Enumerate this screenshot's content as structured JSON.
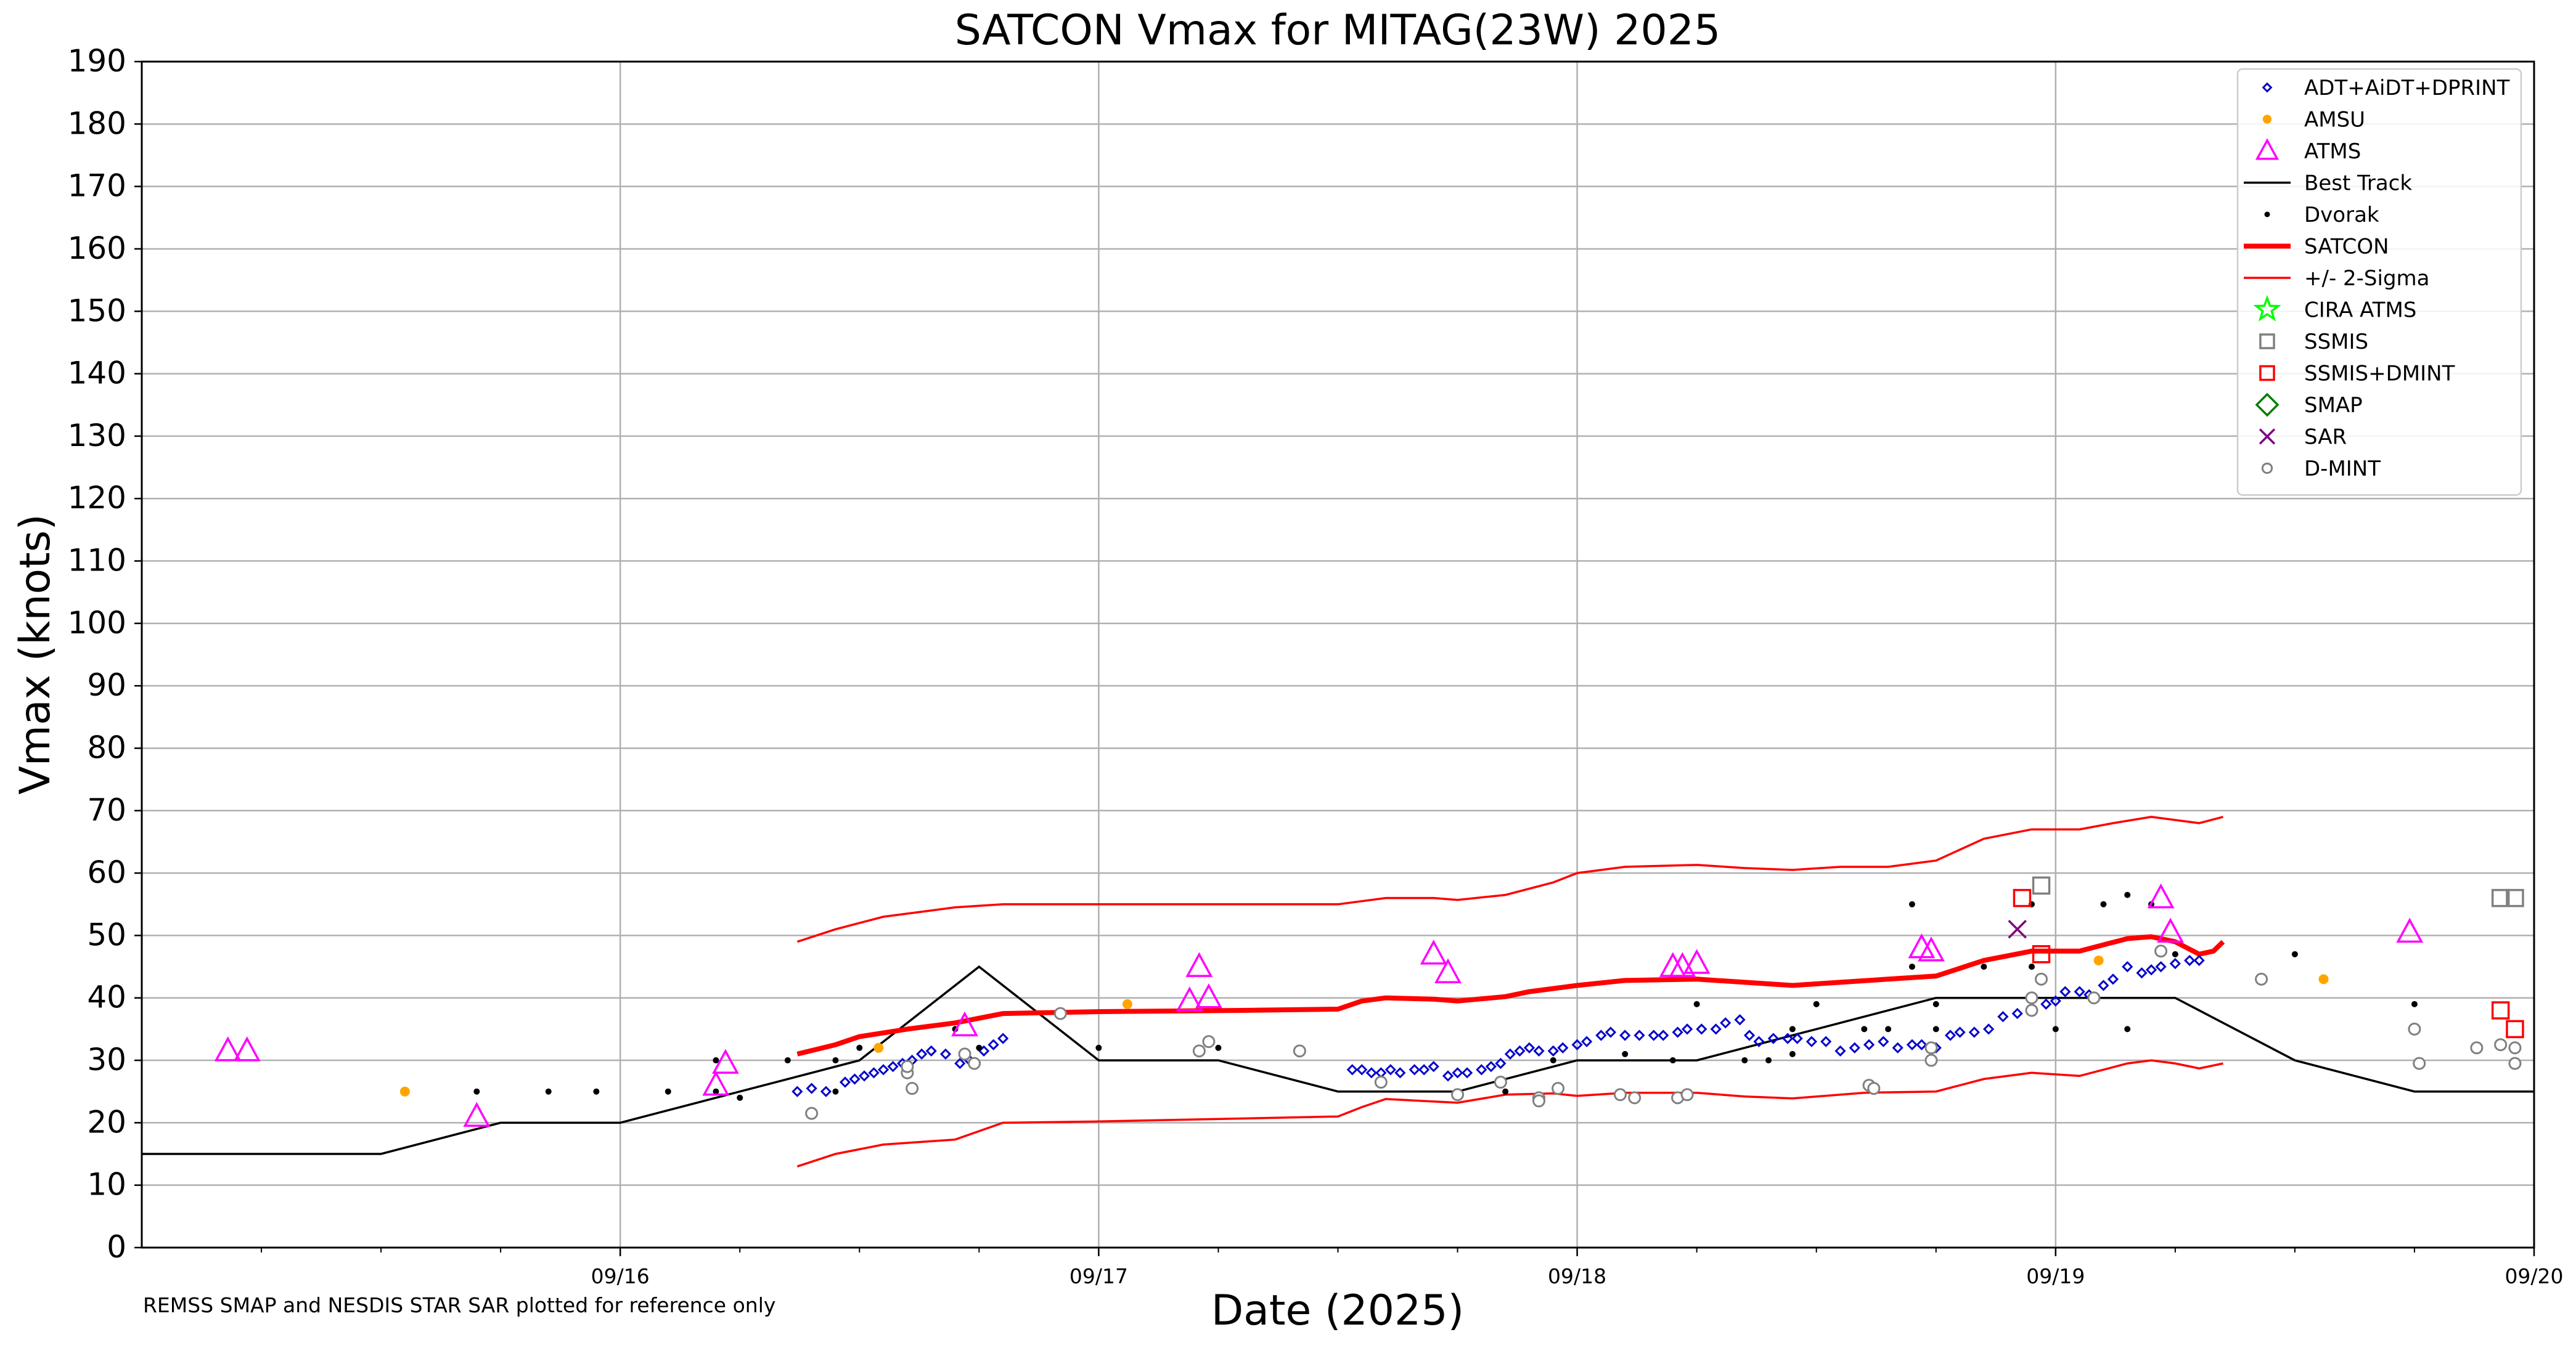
{
  "chart_data": {
    "type": "scatter",
    "title": "SATCON Vmax for MITAG(23W) 2025",
    "xlabel": "Date (2025)",
    "ylabel": "Vmax (knots)",
    "footnote": "REMSS SMAP and NESDIS STAR SAR plotted for reference only",
    "x_unit": "days (Sep 2025, fractional)",
    "xlim": [
      15.0,
      20.0
    ],
    "ylim": [
      0,
      190
    ],
    "y_ticks": [
      0,
      10,
      20,
      30,
      40,
      50,
      60,
      70,
      80,
      90,
      100,
      110,
      120,
      130,
      140,
      150,
      160,
      170,
      180,
      190
    ],
    "x_ticks": [
      {
        "value": 16,
        "label": "09/16"
      },
      {
        "value": 17,
        "label": "09/17"
      },
      {
        "value": 18,
        "label": "09/18"
      },
      {
        "value": 19,
        "label": "09/19"
      },
      {
        "value": 20,
        "label": "09/20"
      }
    ],
    "grid": true,
    "legend_position": "upper right",
    "colors": {
      "adt": "#0000cc",
      "amsu": "#ffa500",
      "atms": "#ff00ff",
      "best_track": "#000000",
      "dvorak": "#000000",
      "satcon": "#ff0000",
      "sigma": "#ff0000",
      "cira": "#00ff00",
      "ssmis": "#808080",
      "ssmis_dmint": "#ff0000",
      "smap": "#008000",
      "sar": "#800080",
      "dmint": "#808080"
    },
    "legend": [
      {
        "key": "adt",
        "label": "ADT+AiDT+DPRINT"
      },
      {
        "key": "amsu",
        "label": "AMSU"
      },
      {
        "key": "atms",
        "label": "ATMS"
      },
      {
        "key": "best_track",
        "label": "Best Track"
      },
      {
        "key": "dvorak",
        "label": "Dvorak"
      },
      {
        "key": "satcon",
        "label": "SATCON"
      },
      {
        "key": "sigma",
        "label": "+/- 2-Sigma"
      },
      {
        "key": "cira",
        "label": "CIRA ATMS"
      },
      {
        "key": "ssmis",
        "label": "SSMIS"
      },
      {
        "key": "ssmis_dmint",
        "label": "SSMIS+DMINT"
      },
      {
        "key": "smap",
        "label": "SMAP"
      },
      {
        "key": "sar",
        "label": "SAR"
      },
      {
        "key": "dmint",
        "label": "D-MINT"
      }
    ],
    "series": {
      "best_track": [
        [
          15.0,
          15
        ],
        [
          15.5,
          15
        ],
        [
          15.75,
          20
        ],
        [
          16.0,
          20
        ],
        [
          16.25,
          25
        ],
        [
          16.5,
          30
        ],
        [
          16.75,
          45
        ],
        [
          17.0,
          30
        ],
        [
          17.25,
          30
        ],
        [
          17.5,
          25
        ],
        [
          17.75,
          25
        ],
        [
          18.0,
          30
        ],
        [
          18.25,
          30
        ],
        [
          18.5,
          35
        ],
        [
          18.75,
          40
        ],
        [
          19.0,
          40
        ],
        [
          19.25,
          40
        ],
        [
          19.5,
          30
        ],
        [
          19.75,
          25
        ],
        [
          20.0,
          25
        ]
      ],
      "satcon": [
        [
          16.37,
          31
        ],
        [
          16.45,
          32.5
        ],
        [
          16.5,
          33.8
        ],
        [
          16.6,
          35
        ],
        [
          16.7,
          36
        ],
        [
          16.8,
          37.5
        ],
        [
          17.0,
          37.8
        ],
        [
          17.3,
          38
        ],
        [
          17.5,
          38.2
        ],
        [
          17.55,
          39.5
        ],
        [
          17.6,
          40
        ],
        [
          17.7,
          39.8
        ],
        [
          17.75,
          39.5
        ],
        [
          17.85,
          40.2
        ],
        [
          17.9,
          41
        ],
        [
          18.0,
          42
        ],
        [
          18.1,
          42.8
        ],
        [
          18.25,
          43
        ],
        [
          18.35,
          42.5
        ],
        [
          18.45,
          42
        ],
        [
          18.55,
          42.5
        ],
        [
          18.65,
          43
        ],
        [
          18.75,
          43.5
        ],
        [
          18.85,
          46
        ],
        [
          18.95,
          47.5
        ],
        [
          19.05,
          47.5
        ],
        [
          19.15,
          49.5
        ],
        [
          19.2,
          49.8
        ],
        [
          19.25,
          49
        ],
        [
          19.3,
          47
        ],
        [
          19.33,
          47.5
        ],
        [
          19.35,
          49
        ]
      ],
      "sigma_upper": [
        [
          16.37,
          49
        ],
        [
          16.45,
          51
        ],
        [
          16.55,
          53
        ],
        [
          16.7,
          54.5
        ],
        [
          16.8,
          55
        ],
        [
          17.0,
          55
        ],
        [
          17.5,
          55
        ],
        [
          17.6,
          56
        ],
        [
          17.7,
          56
        ],
        [
          17.75,
          55.7
        ],
        [
          17.85,
          56.5
        ],
        [
          17.95,
          58.5
        ],
        [
          18.0,
          60
        ],
        [
          18.1,
          61
        ],
        [
          18.25,
          61.3
        ],
        [
          18.35,
          60.8
        ],
        [
          18.45,
          60.5
        ],
        [
          18.55,
          61
        ],
        [
          18.65,
          61
        ],
        [
          18.75,
          62
        ],
        [
          18.85,
          65.5
        ],
        [
          18.95,
          67
        ],
        [
          19.05,
          67
        ],
        [
          19.12,
          68
        ],
        [
          19.2,
          69
        ],
        [
          19.25,
          68.5
        ],
        [
          19.3,
          68
        ],
        [
          19.35,
          69
        ]
      ],
      "sigma_lower": [
        [
          16.37,
          13
        ],
        [
          16.45,
          15
        ],
        [
          16.55,
          16.5
        ],
        [
          16.7,
          17.3
        ],
        [
          16.8,
          20
        ],
        [
          17.0,
          20.2
        ],
        [
          17.5,
          21
        ],
        [
          17.55,
          22.5
        ],
        [
          17.6,
          23.8
        ],
        [
          17.75,
          23.2
        ],
        [
          17.85,
          24.5
        ],
        [
          17.95,
          24.7
        ],
        [
          18.0,
          24.3
        ],
        [
          18.1,
          24.8
        ],
        [
          18.25,
          24.8
        ],
        [
          18.35,
          24.2
        ],
        [
          18.45,
          23.9
        ],
        [
          18.6,
          24.8
        ],
        [
          18.75,
          25
        ],
        [
          18.85,
          27
        ],
        [
          18.95,
          28
        ],
        [
          19.05,
          27.5
        ],
        [
          19.15,
          29.5
        ],
        [
          19.2,
          30
        ],
        [
          19.25,
          29.5
        ],
        [
          19.3,
          28.7
        ],
        [
          19.35,
          29.5
        ]
      ],
      "adt": [
        [
          16.37,
          25
        ],
        [
          16.4,
          25.5
        ],
        [
          16.43,
          25
        ],
        [
          16.47,
          26.5
        ],
        [
          16.49,
          27
        ],
        [
          16.51,
          27.5
        ],
        [
          16.53,
          28
        ],
        [
          16.55,
          28.5
        ],
        [
          16.57,
          29
        ],
        [
          16.59,
          29.5
        ],
        [
          16.61,
          30
        ],
        [
          16.63,
          31
        ],
        [
          16.65,
          31.5
        ],
        [
          16.68,
          31
        ],
        [
          16.71,
          29.5
        ],
        [
          16.73,
          30
        ],
        [
          16.76,
          31.5
        ],
        [
          16.78,
          32.5
        ],
        [
          16.8,
          33.5
        ],
        [
          17.53,
          28.5
        ],
        [
          17.55,
          28.5
        ],
        [
          17.57,
          28
        ],
        [
          17.59,
          28
        ],
        [
          17.61,
          28.5
        ],
        [
          17.63,
          28
        ],
        [
          17.66,
          28.5
        ],
        [
          17.68,
          28.5
        ],
        [
          17.7,
          29
        ],
        [
          17.73,
          27.5
        ],
        [
          17.75,
          28
        ],
        [
          17.77,
          28
        ],
        [
          17.8,
          28.5
        ],
        [
          17.82,
          29
        ],
        [
          17.84,
          29.5
        ],
        [
          17.86,
          31
        ],
        [
          17.88,
          31.5
        ],
        [
          17.9,
          32
        ],
        [
          17.92,
          31.5
        ],
        [
          17.95,
          31.5
        ],
        [
          17.97,
          32
        ],
        [
          18.0,
          32.5
        ],
        [
          18.02,
          33
        ],
        [
          18.05,
          34
        ],
        [
          18.07,
          34.5
        ],
        [
          18.1,
          34
        ],
        [
          18.13,
          34
        ],
        [
          18.16,
          34
        ],
        [
          18.18,
          34
        ],
        [
          18.21,
          34.5
        ],
        [
          18.23,
          35
        ],
        [
          18.26,
          35
        ],
        [
          18.29,
          35
        ],
        [
          18.31,
          36
        ],
        [
          18.34,
          36.5
        ],
        [
          18.36,
          34
        ],
        [
          18.38,
          33
        ],
        [
          18.41,
          33.5
        ],
        [
          18.44,
          33.5
        ],
        [
          18.46,
          33.5
        ],
        [
          18.49,
          33
        ],
        [
          18.52,
          33
        ],
        [
          18.55,
          31.5
        ],
        [
          18.58,
          32
        ],
        [
          18.61,
          32.5
        ],
        [
          18.64,
          33
        ],
        [
          18.67,
          32
        ],
        [
          18.7,
          32.5
        ],
        [
          18.72,
          32.5
        ],
        [
          18.75,
          32
        ],
        [
          18.78,
          34
        ],
        [
          18.8,
          34.5
        ],
        [
          18.83,
          34.5
        ],
        [
          18.86,
          35
        ],
        [
          18.89,
          37
        ],
        [
          18.92,
          37.5
        ],
        [
          18.95,
          38
        ],
        [
          18.98,
          39
        ],
        [
          19.0,
          39.5
        ],
        [
          19.02,
          41
        ],
        [
          19.05,
          41
        ],
        [
          19.07,
          40.5
        ],
        [
          19.1,
          42
        ],
        [
          19.12,
          43
        ],
        [
          19.15,
          45
        ],
        [
          19.18,
          44
        ],
        [
          19.2,
          44.5
        ],
        [
          19.22,
          45
        ],
        [
          19.25,
          45.5
        ],
        [
          19.28,
          46
        ],
        [
          19.3,
          46
        ]
      ],
      "amsu": [
        [
          15.55,
          25
        ],
        [
          16.54,
          32
        ],
        [
          17.06,
          39
        ],
        [
          19.09,
          46
        ],
        [
          19.56,
          43
        ]
      ],
      "atms": [
        [
          15.18,
          31.5
        ],
        [
          15.22,
          31.5
        ],
        [
          15.7,
          21
        ],
        [
          16.2,
          26
        ],
        [
          16.22,
          29.5
        ],
        [
          16.72,
          35.5
        ],
        [
          17.19,
          39.5
        ],
        [
          17.21,
          45
        ],
        [
          17.23,
          40
        ],
        [
          17.7,
          47
        ],
        [
          17.73,
          44
        ],
        [
          18.2,
          45
        ],
        [
          18.22,
          45
        ],
        [
          18.25,
          45.5
        ],
        [
          18.72,
          48
        ],
        [
          18.74,
          47.5
        ],
        [
          19.22,
          56
        ],
        [
          19.24,
          50.5
        ],
        [
          19.74,
          50.5
        ]
      ],
      "dvorak": [
        [
          15.7,
          25
        ],
        [
          15.85,
          25
        ],
        [
          15.95,
          25
        ],
        [
          16.1,
          25
        ],
        [
          16.2,
          30
        ],
        [
          16.2,
          25
        ],
        [
          16.25,
          24
        ],
        [
          16.35,
          30
        ],
        [
          16.45,
          25
        ],
        [
          16.45,
          30
        ],
        [
          16.5,
          32
        ],
        [
          16.7,
          35
        ],
        [
          16.75,
          32
        ],
        [
          17.0,
          32
        ],
        [
          17.25,
          32
        ],
        [
          17.75,
          25
        ],
        [
          17.85,
          25
        ],
        [
          17.95,
          30
        ],
        [
          18.1,
          31
        ],
        [
          18.2,
          30
        ],
        [
          18.25,
          39
        ],
        [
          18.35,
          30
        ],
        [
          18.4,
          30
        ],
        [
          18.45,
          31
        ],
        [
          18.45,
          35
        ],
        [
          18.5,
          39
        ],
        [
          18.6,
          35
        ],
        [
          18.65,
          35
        ],
        [
          18.7,
          45
        ],
        [
          18.7,
          55
        ],
        [
          18.75,
          35
        ],
        [
          18.75,
          39
        ],
        [
          18.85,
          45
        ],
        [
          18.95,
          45
        ],
        [
          18.95,
          55
        ],
        [
          19.0,
          35
        ],
        [
          19.1,
          55
        ],
        [
          19.15,
          35
        ],
        [
          19.15,
          56.5
        ],
        [
          19.2,
          55
        ],
        [
          19.25,
          47
        ],
        [
          19.5,
          47
        ],
        [
          19.75,
          39
        ]
      ],
      "ssmis": [
        [
          18.97,
          58
        ],
        [
          19.93,
          56
        ],
        [
          19.96,
          56
        ]
      ],
      "ssmis_dmint": [
        [
          18.93,
          56
        ],
        [
          18.97,
          47
        ],
        [
          19.93,
          38
        ],
        [
          19.96,
          35
        ]
      ],
      "sar": [
        [
          18.92,
          51
        ]
      ],
      "dmint": [
        [
          16.4,
          21.5
        ],
        [
          16.6,
          28
        ],
        [
          16.6,
          29
        ],
        [
          16.61,
          25.5
        ],
        [
          16.72,
          31
        ],
        [
          16.74,
          29.5
        ],
        [
          16.92,
          37.5
        ],
        [
          17.21,
          31.5
        ],
        [
          17.23,
          33
        ],
        [
          17.42,
          31.5
        ],
        [
          17.59,
          26.5
        ],
        [
          17.75,
          24.5
        ],
        [
          17.84,
          26.5
        ],
        [
          17.92,
          24
        ],
        [
          17.92,
          23.5
        ],
        [
          17.96,
          25.5
        ],
        [
          18.09,
          24.5
        ],
        [
          18.12,
          24
        ],
        [
          18.21,
          24
        ],
        [
          18.23,
          24.5
        ],
        [
          18.61,
          26
        ],
        [
          18.62,
          25.5
        ],
        [
          18.74,
          30
        ],
        [
          18.74,
          32
        ],
        [
          18.95,
          40
        ],
        [
          18.95,
          38
        ],
        [
          18.97,
          43
        ],
        [
          19.08,
          40
        ],
        [
          19.22,
          47.5
        ],
        [
          19.43,
          43
        ],
        [
          19.75,
          35
        ],
        [
          19.76,
          29.5
        ],
        [
          19.88,
          32
        ],
        [
          19.93,
          32.5
        ],
        [
          19.96,
          29.5
        ],
        [
          19.96,
          32
        ]
      ]
    }
  }
}
